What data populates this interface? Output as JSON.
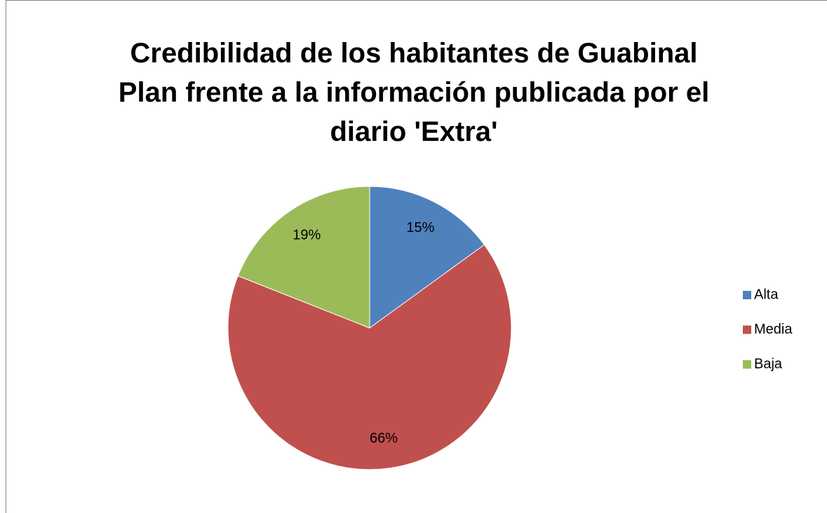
{
  "chart_data": {
    "type": "pie",
    "title": "Credibilidad de los habitantes de Guabinal Plan frente a la información publicada por el diario 'Extra'",
    "categories": [
      "Alta",
      "Media",
      "Baja"
    ],
    "values": [
      15,
      66,
      19
    ],
    "value_labels": [
      "15%",
      "66%",
      "19%"
    ],
    "colors": [
      "#4f81bd",
      "#c0504d",
      "#9bbb59"
    ],
    "legend": "right"
  }
}
